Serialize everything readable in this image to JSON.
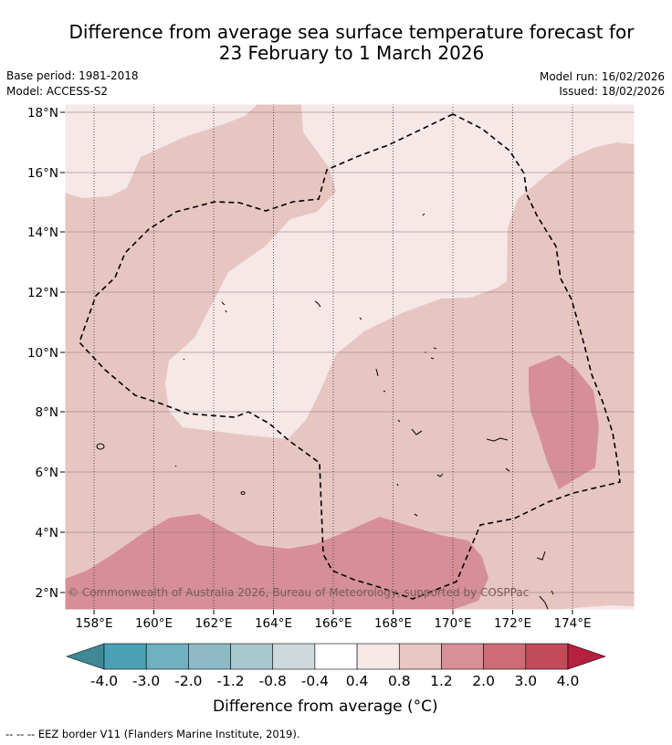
{
  "title_line1": "Difference from average sea surface temperature forecast for",
  "title_line2": "23 February to 1 March 2026",
  "base_period": "Base period: 1981-2018",
  "model": "Model: ACCESS-S2",
  "model_run": "Model run: 16/02/2026",
  "issued": "Issued: 18/02/2026",
  "copyright": "© Commonwealth of Australia 2026, Bureau of Meteorology, supported by COSPPac",
  "lat_labels": [
    "18°N",
    "16°N",
    "14°N",
    "12°N",
    "10°N",
    "8°N",
    "6°N",
    "4°N",
    "2°N"
  ],
  "lon_labels": [
    "158°E",
    "160°E",
    "162°E",
    "164°E",
    "166°E",
    "168°E",
    "170°E",
    "172°E",
    "174°E"
  ],
  "colorbar": {
    "labels": [
      "-4.0",
      "-3.0",
      "-2.0",
      "-1.2",
      "-0.8",
      "-0.4",
      "0.4",
      "0.8",
      "1.2",
      "2.0",
      "3.0",
      "4.0"
    ],
    "colors": [
      "#4aa1b5",
      "#6fb0c1",
      "#8dbac6",
      "#a9c8cd",
      "#cdd9dc",
      "#ffffff",
      "#f5e8e7",
      "#e8c6c2",
      "#d88f96",
      "#cd6c77",
      "#c34a58"
    ],
    "low_extend_color": "#3f8896",
    "high_extend_color": "#b5213f",
    "title": "Difference from average (°C)"
  },
  "legend_footer": "--  --  -- EEZ border V11 (Flanders Marine Institute, 2019).",
  "fill_colors": {
    "band_0_4_0_8": "#f5e8e7",
    "band_0_8_1_2": "#e7c6c2",
    "band_1_2_2_0": "#d68f96"
  }
}
